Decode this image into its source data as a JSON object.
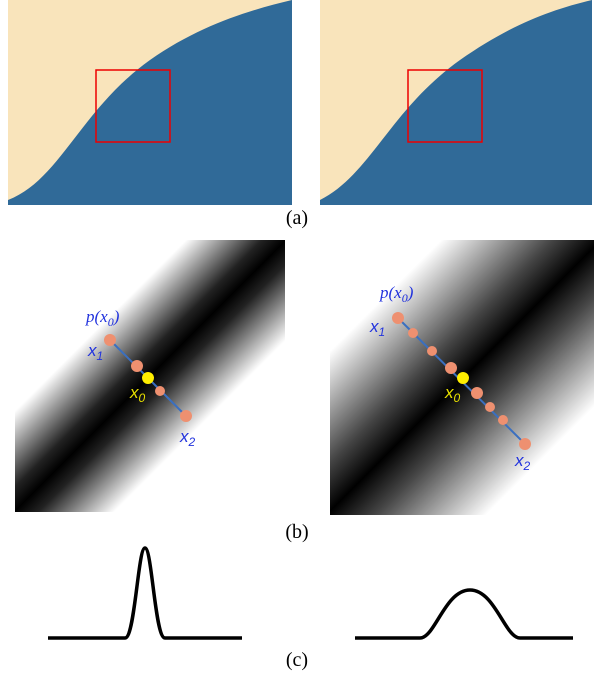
{
  "panels": [
    {
      "caption": "(a)"
    },
    {
      "caption": "(b)",
      "left": {
        "p_label": {
          "pre": "p(x",
          "sub": "0",
          "post": ")"
        },
        "x1": {
          "base": "x",
          "sub": "1"
        },
        "x0": {
          "base": "x",
          "sub": "0"
        },
        "x2": {
          "base": "x",
          "sub": "2"
        }
      },
      "right": {
        "p_label": {
          "pre": "p(x",
          "sub": "0",
          "post": ")"
        },
        "x1": {
          "base": "x",
          "sub": "1"
        },
        "x0": {
          "base": "x",
          "sub": "0"
        },
        "x2": {
          "base": "x",
          "sub": "2"
        }
      }
    },
    {
      "caption": "(c)"
    }
  ]
}
